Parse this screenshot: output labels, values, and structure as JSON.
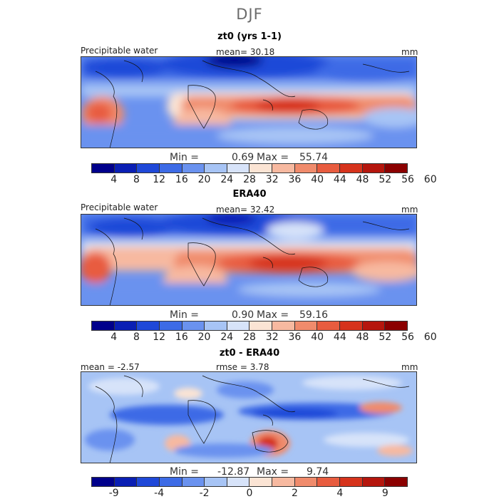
{
  "figure": {
    "title": "DJF"
  },
  "panels": [
    {
      "title": "zt0 (yrs 1-1)",
      "left_label": "Precipitable water",
      "center_label": "mean=  30.18",
      "units": "mm",
      "min_label": "Min =",
      "min_value": "0.69",
      "max_label": "Max =",
      "max_value": "55.74",
      "colorbar": {
        "colors": [
          "#00008b",
          "#0a1fb4",
          "#1f48d8",
          "#3d6be6",
          "#6a92ef",
          "#a7c4f5",
          "#d7e3f9",
          "#fbe4d4",
          "#f7b9a0",
          "#f08b6c",
          "#e85c3f",
          "#d6331c",
          "#b5160d",
          "#8b0000"
        ],
        "ticks": [
          "4",
          "8",
          "12",
          "16",
          "20",
          "24",
          "28",
          "32",
          "36",
          "40",
          "44",
          "48",
          "52",
          "56",
          "60"
        ]
      }
    },
    {
      "title": "ERA40",
      "left_label": "Precipitable water",
      "center_label": "mean=  32.42",
      "units": "mm",
      "min_label": "Min =",
      "min_value": "0.90",
      "max_label": "Max =",
      "max_value": "59.16",
      "colorbar": {
        "colors": [
          "#00008b",
          "#0a1fb4",
          "#1f48d8",
          "#3d6be6",
          "#6a92ef",
          "#a7c4f5",
          "#d7e3f9",
          "#fbe4d4",
          "#f7b9a0",
          "#f08b6c",
          "#e85c3f",
          "#d6331c",
          "#b5160d",
          "#8b0000"
        ],
        "ticks": [
          "4",
          "8",
          "12",
          "16",
          "20",
          "24",
          "28",
          "32",
          "36",
          "40",
          "44",
          "48",
          "52",
          "56",
          "60"
        ]
      }
    },
    {
      "title": "zt0 - ERA40",
      "left_label": "mean =  -2.57",
      "center_label": "rmse =   3.78",
      "units": "mm",
      "min_label": "Min =",
      "min_value": "-12.87",
      "max_label": "Max =",
      "max_value": "9.74",
      "colorbar": {
        "colors": [
          "#00008b",
          "#0a1fb4",
          "#1f48d8",
          "#3d6be6",
          "#6a92ef",
          "#a7c4f5",
          "#d7e3f9",
          "#fbe4d4",
          "#f7b9a0",
          "#f08b6c",
          "#e85c3f",
          "#d6331c",
          "#b5160d",
          "#8b0000"
        ],
        "ticks": [
          "-9",
          "-4",
          "-2",
          "0",
          "2",
          "4",
          "9"
        ]
      }
    }
  ]
}
